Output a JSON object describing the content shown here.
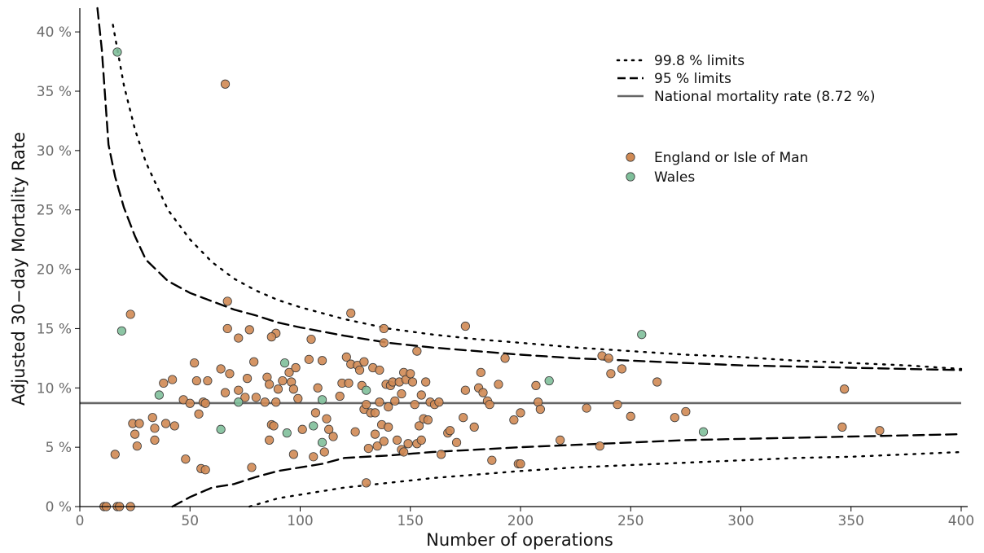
{
  "chart_data": {
    "type": "scatter",
    "xlabel": "Number of operations",
    "ylabel": "Adjusted 30−day Mortality Rate",
    "xlim": [
      0,
      400
    ],
    "ylim": [
      0,
      42
    ],
    "x_ticks": [
      0,
      50,
      100,
      150,
      200,
      250,
      300,
      350,
      400
    ],
    "x_tick_labels": [
      "0",
      "50",
      "100",
      "150",
      "200",
      "250",
      "300",
      "350",
      "400"
    ],
    "y_ticks": [
      0,
      5,
      10,
      15,
      20,
      25,
      30,
      35,
      40
    ],
    "y_tick_labels": [
      "0 %",
      "5 %",
      "10 %",
      "15 %",
      "20 %",
      "25 %",
      "30 %",
      "35 %",
      "40 %"
    ],
    "grid": false,
    "legend_position": "top-right",
    "national_rate": 8.72,
    "colors": {
      "england": "#d08a54",
      "wales": "#7fbf9a",
      "national": "#666666",
      "limits": "#000000"
    },
    "lines": [
      {
        "name": "99.8 % limits",
        "style": "dotted",
        "x": [
          15,
          20,
          25,
          30,
          40,
          50,
          60,
          70,
          80,
          90,
          100,
          120,
          140,
          160,
          180,
          200,
          225,
          250,
          275,
          300,
          325,
          350,
          375,
          400
        ],
        "y": [
          40.6,
          35.5,
          31.8,
          29.0,
          25.0,
          22.5,
          20.6,
          19.2,
          18.2,
          17.4,
          16.8,
          15.8,
          15.0,
          14.5,
          14.1,
          13.8,
          13.4,
          13.1,
          12.8,
          12.6,
          12.3,
          12.1,
          11.9,
          11.6
        ]
      },
      {
        "name": "95 % limits",
        "style": "dashed",
        "x": [
          8,
          10,
          13,
          16,
          20,
          25,
          30,
          40,
          50,
          60,
          70,
          80,
          90,
          100,
          120,
          140,
          160,
          180,
          200,
          225,
          250,
          275,
          300,
          325,
          350,
          375,
          400
        ],
        "y": [
          42.0,
          38.5,
          30.5,
          27.8,
          25.2,
          22.8,
          20.8,
          19.0,
          18.0,
          17.3,
          16.6,
          16.1,
          15.5,
          15.1,
          14.4,
          13.8,
          13.4,
          13.1,
          12.8,
          12.5,
          12.3,
          12.1,
          11.9,
          11.8,
          11.7,
          11.6,
          11.5
        ]
      },
      {
        "name": "95 % lower limit",
        "style": "dashed",
        "x": [
          42,
          50,
          60,
          70,
          80,
          90,
          100,
          110,
          120,
          140,
          160,
          180,
          200,
          225,
          250,
          275,
          300,
          325,
          350,
          375,
          400
        ],
        "y": [
          0.0,
          0.8,
          1.6,
          1.9,
          2.5,
          3.0,
          3.3,
          3.6,
          4.1,
          4.3,
          4.6,
          4.8,
          5.0,
          5.2,
          5.4,
          5.6,
          5.7,
          5.8,
          5.9,
          6.0,
          6.1
        ]
      },
      {
        "name": "99.8 % lower limit",
        "style": "dotted",
        "x": [
          77,
          90,
          100,
          120,
          140,
          160,
          180,
          200,
          225,
          250,
          275,
          300,
          325,
          350,
          375,
          400
        ],
        "y": [
          0.0,
          0.7,
          1.0,
          1.6,
          2.0,
          2.4,
          2.7,
          3.0,
          3.3,
          3.5,
          3.7,
          3.9,
          4.1,
          4.2,
          4.4,
          4.6
        ]
      }
    ],
    "legend_lines": [
      {
        "label": "99.8 % limits",
        "style": "dotted"
      },
      {
        "label": "95 % limits",
        "style": "dashed"
      },
      {
        "label": "National mortality rate (8.72 %)",
        "style": "solid"
      }
    ],
    "legend_points": [
      {
        "label": "England or Isle of Man",
        "color": "#d08a54"
      },
      {
        "label": "Wales",
        "color": "#7fbf9a"
      }
    ],
    "series": [
      {
        "name": "England or Isle of Man",
        "points": [
          [
            66,
            35.6
          ],
          [
            23,
            16.2
          ],
          [
            67,
            17.3
          ],
          [
            123,
            16.3
          ],
          [
            175,
            15.2
          ],
          [
            67,
            15.0
          ],
          [
            77,
            14.9
          ],
          [
            89,
            14.6
          ],
          [
            87,
            14.3
          ],
          [
            105,
            14.1
          ],
          [
            72,
            14.2
          ],
          [
            138,
            15.0
          ],
          [
            153,
            13.1
          ],
          [
            138,
            13.8
          ],
          [
            24,
            7.0
          ],
          [
            25,
            6.1
          ],
          [
            26,
            5.1
          ],
          [
            16,
            4.4
          ],
          [
            27,
            7.0
          ],
          [
            34,
            6.6
          ],
          [
            33,
            7.5
          ],
          [
            34,
            5.6
          ],
          [
            38,
            10.4
          ],
          [
            39,
            7.0
          ],
          [
            42,
            10.7
          ],
          [
            43,
            6.8
          ],
          [
            47,
            9.0
          ],
          [
            48,
            4.0
          ],
          [
            50,
            8.7
          ],
          [
            52,
            12.1
          ],
          [
            53,
            10.6
          ],
          [
            54,
            7.8
          ],
          [
            55,
            3.2
          ],
          [
            56,
            8.8
          ],
          [
            57,
            8.7
          ],
          [
            57,
            3.1
          ],
          [
            58,
            10.6
          ],
          [
            64,
            11.6
          ],
          [
            66,
            9.6
          ],
          [
            68,
            11.2
          ],
          [
            72,
            9.8
          ],
          [
            75,
            9.2
          ],
          [
            76,
            10.8
          ],
          [
            78,
            3.3
          ],
          [
            79,
            12.2
          ],
          [
            80,
            9.2
          ],
          [
            84,
            8.8
          ],
          [
            85,
            10.9
          ],
          [
            86,
            10.3
          ],
          [
            86,
            5.6
          ],
          [
            87,
            6.9
          ],
          [
            88,
            6.8
          ],
          [
            89,
            8.8
          ],
          [
            90,
            9.9
          ],
          [
            92,
            10.6
          ],
          [
            95,
            11.3
          ],
          [
            96,
            10.5
          ],
          [
            97,
            9.9
          ],
          [
            98,
            11.7
          ],
          [
            99,
            9.1
          ],
          [
            97,
            4.4
          ],
          [
            101,
            6.5
          ],
          [
            104,
            12.4
          ],
          [
            106,
            4.2
          ],
          [
            107,
            7.9
          ],
          [
            108,
            10.0
          ],
          [
            110,
            12.3
          ],
          [
            111,
            4.6
          ],
          [
            112,
            7.4
          ],
          [
            113,
            6.5
          ],
          [
            115,
            5.9
          ],
          [
            118,
            9.3
          ],
          [
            119,
            10.4
          ],
          [
            121,
            12.6
          ],
          [
            122,
            10.4
          ],
          [
            123,
            12.0
          ],
          [
            125,
            6.3
          ],
          [
            126,
            11.9
          ],
          [
            127,
            11.5
          ],
          [
            128,
            10.2
          ],
          [
            129,
            12.2
          ],
          [
            129,
            8.2
          ],
          [
            130,
            8.6
          ],
          [
            130,
            2.0
          ],
          [
            131,
            4.9
          ],
          [
            132,
            7.9
          ],
          [
            133,
            11.7
          ],
          [
            134,
            6.1
          ],
          [
            134,
            7.9
          ],
          [
            135,
            5.1
          ],
          [
            136,
            8.8
          ],
          [
            136,
            11.5
          ],
          [
            137,
            6.9
          ],
          [
            138,
            5.5
          ],
          [
            139,
            10.3
          ],
          [
            140,
            8.4
          ],
          [
            140,
            6.7
          ],
          [
            141,
            10.2
          ],
          [
            142,
            10.5
          ],
          [
            143,
            8.9
          ],
          [
            144,
            5.6
          ],
          [
            145,
            10.5
          ],
          [
            146,
            9.5
          ],
          [
            146,
            4.8
          ],
          [
            147,
            11.3
          ],
          [
            147,
            4.6
          ],
          [
            148,
            10.7
          ],
          [
            149,
            5.3
          ],
          [
            150,
            11.2
          ],
          [
            151,
            10.5
          ],
          [
            152,
            8.6
          ],
          [
            153,
            5.3
          ],
          [
            154,
            6.8
          ],
          [
            155,
            5.6
          ],
          [
            155,
            9.4
          ],
          [
            156,
            7.4
          ],
          [
            157,
            10.5
          ],
          [
            158,
            7.3
          ],
          [
            159,
            8.8
          ],
          [
            161,
            8.6
          ],
          [
            163,
            8.8
          ],
          [
            164,
            4.4
          ],
          [
            167,
            6.2
          ],
          [
            168,
            6.4
          ],
          [
            171,
            5.4
          ],
          [
            174,
            7.5
          ],
          [
            175,
            9.8
          ],
          [
            179,
            6.7
          ],
          [
            181,
            10.0
          ],
          [
            182,
            11.3
          ],
          [
            183,
            9.6
          ],
          [
            185,
            8.9
          ],
          [
            186,
            8.6
          ],
          [
            187,
            3.9
          ],
          [
            190,
            10.3
          ],
          [
            193,
            12.5
          ],
          [
            197,
            7.3
          ],
          [
            199,
            3.6
          ],
          [
            200,
            3.6
          ],
          [
            200,
            7.9
          ],
          [
            207,
            10.2
          ],
          [
            208,
            8.8
          ],
          [
            209,
            8.2
          ],
          [
            218,
            5.6
          ],
          [
            230,
            8.3
          ],
          [
            236,
            5.1
          ],
          [
            237,
            12.7
          ],
          [
            240,
            12.5
          ],
          [
            241,
            11.2
          ],
          [
            244,
            8.6
          ],
          [
            246,
            11.6
          ],
          [
            250,
            7.6
          ],
          [
            262,
            10.5
          ],
          [
            270,
            7.5
          ],
          [
            275,
            8.0
          ],
          [
            347,
            9.9
          ],
          [
            346,
            6.7
          ],
          [
            363,
            6.4
          ],
          [
            11,
            0.0
          ],
          [
            12,
            0.0
          ],
          [
            17,
            0.0
          ],
          [
            18,
            0.0
          ],
          [
            23,
            0.0
          ]
        ]
      },
      {
        "name": "Wales",
        "points": [
          [
            17,
            38.3
          ],
          [
            19,
            14.8
          ],
          [
            36,
            9.4
          ],
          [
            64,
            6.5
          ],
          [
            72,
            8.8
          ],
          [
            93,
            12.1
          ],
          [
            94,
            6.2
          ],
          [
            106,
            6.8
          ],
          [
            110,
            5.4
          ],
          [
            110,
            9.0
          ],
          [
            130,
            9.8
          ],
          [
            213,
            10.6
          ],
          [
            255,
            14.5
          ],
          [
            283,
            6.3
          ]
        ]
      }
    ]
  }
}
